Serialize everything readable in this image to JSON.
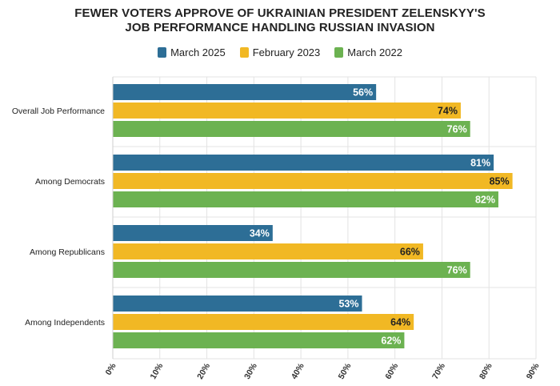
{
  "title_lines": [
    "FEWER VOTERS APPROVE OF UKRAINIAN PRESIDENT ZELENSKYY'S",
    "JOB PERFORMANCE HANDLING RUSSIAN INVASION"
  ],
  "colors": {
    "March 2025": "#2d6e96",
    "February 2023": "#f1b824",
    "March 2022": "#6cb251",
    "grid": "#e3e3e3",
    "text": "#222222"
  },
  "chart_data": {
    "type": "bar",
    "orientation": "horizontal",
    "title": "FEWER VOTERS APPROVE OF UKRAINIAN PRESIDENT ZELENSKYY'S JOB PERFORMANCE HANDLING RUSSIAN INVASION",
    "categories": [
      "Overall Job Performance",
      "Among Democrats",
      "Among Republicans",
      "Among Independents"
    ],
    "series": [
      {
        "name": "March 2025",
        "values": [
          56,
          81,
          34,
          53
        ]
      },
      {
        "name": "February 2023",
        "values": [
          74,
          85,
          66,
          64
        ]
      },
      {
        "name": "March 2022",
        "values": [
          76,
          82,
          76,
          62
        ]
      }
    ],
    "data_labels": [
      [
        "56%",
        "74%",
        "76%"
      ],
      [
        "81%",
        "85%",
        "82%"
      ],
      [
        "34%",
        "66%",
        "76%"
      ],
      [
        "53%",
        "64%",
        "62%"
      ]
    ],
    "xlim": [
      0,
      90
    ],
    "xticks": [
      0,
      10,
      20,
      30,
      40,
      50,
      60,
      70,
      80,
      90
    ],
    "xtick_labels": [
      "0%",
      "10%",
      "20%",
      "30%",
      "40%",
      "50%",
      "60%",
      "70%",
      "80%",
      "90%"
    ],
    "xlabel": "",
    "ylabel": "",
    "grid": true,
    "legend": {
      "position": "top-center",
      "entries": [
        "March 2025",
        "February 2023",
        "March 2022"
      ]
    }
  }
}
